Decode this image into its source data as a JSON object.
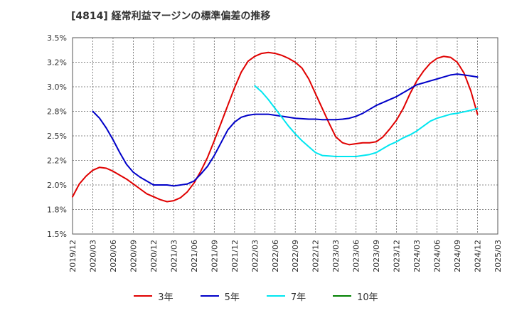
{
  "title": "[4814]  経常利益マージンの標準偏差の推移",
  "chart_data": {
    "type": "line",
    "title": "[4814]  経常利益マージンの標準偏差の推移",
    "xlabel": "",
    "ylabel": "",
    "ylim": [
      1.5,
      3.5
    ],
    "yticks": [
      "3.5%",
      "3.2%",
      "3.0%",
      "2.8%",
      "2.5%",
      "2.2%",
      "2.0%",
      "1.8%",
      "1.5%"
    ],
    "ytick_values": [
      3.5,
      3.25,
      3.0,
      2.75,
      2.5,
      2.25,
      2.0,
      1.75,
      1.5
    ],
    "xticks": [
      "2019/12",
      "2020/03",
      "2020/06",
      "2020/09",
      "2020/12",
      "2021/03",
      "2021/06",
      "2021/09",
      "2021/12",
      "2022/03",
      "2022/06",
      "2022/09",
      "2022/12",
      "2023/03",
      "2023/06",
      "2023/09",
      "2023/12",
      "2024/03",
      "2024/06",
      "2024/09",
      "2024/12",
      "2025/03"
    ],
    "grid": true,
    "legend_position": "bottom",
    "series": [
      {
        "name": "3年",
        "color": "#e00000",
        "x": [
          "2019/12",
          "2020/01",
          "2020/02",
          "2020/03",
          "2020/04",
          "2020/05",
          "2020/06",
          "2020/07",
          "2020/08",
          "2020/09",
          "2020/10",
          "2020/11",
          "2020/12",
          "2021/01",
          "2021/02",
          "2021/03",
          "2021/04",
          "2021/05",
          "2021/06",
          "2021/07",
          "2021/08",
          "2021/09",
          "2021/10",
          "2021/11",
          "2021/12",
          "2022/01",
          "2022/02",
          "2022/03",
          "2022/04",
          "2022/05",
          "2022/06",
          "2022/07",
          "2022/08",
          "2022/09",
          "2022/10",
          "2022/11",
          "2022/12",
          "2023/01",
          "2023/02",
          "2023/03",
          "2023/04",
          "2023/05",
          "2023/06",
          "2023/07",
          "2023/08",
          "2023/09",
          "2023/10",
          "2023/11",
          "2023/12",
          "2024/01",
          "2024/02",
          "2024/03",
          "2024/04",
          "2024/05",
          "2024/06",
          "2024/07",
          "2024/08",
          "2024/09",
          "2024/10",
          "2024/11",
          "2024/12"
        ],
        "values": [
          1.88,
          2.01,
          2.09,
          2.15,
          2.18,
          2.17,
          2.14,
          2.1,
          2.06,
          2.01,
          1.96,
          1.91,
          1.88,
          1.85,
          1.83,
          1.84,
          1.87,
          1.93,
          2.02,
          2.14,
          2.28,
          2.45,
          2.63,
          2.81,
          2.99,
          3.15,
          3.26,
          3.31,
          3.34,
          3.35,
          3.34,
          3.32,
          3.29,
          3.25,
          3.19,
          3.08,
          2.93,
          2.78,
          2.63,
          2.49,
          2.43,
          2.41,
          2.42,
          2.43,
          2.43,
          2.44,
          2.49,
          2.57,
          2.66,
          2.78,
          2.93,
          3.06,
          3.16,
          3.24,
          3.29,
          3.31,
          3.3,
          3.25,
          3.14,
          2.96,
          2.72
        ]
      },
      {
        "name": "5年",
        "color": "#0000c8",
        "x": [
          "2020/03",
          "2020/04",
          "2020/05",
          "2020/06",
          "2020/07",
          "2020/08",
          "2020/09",
          "2020/10",
          "2020/11",
          "2020/12",
          "2021/01",
          "2021/02",
          "2021/03",
          "2021/04",
          "2021/05",
          "2021/06",
          "2021/07",
          "2021/08",
          "2021/09",
          "2021/10",
          "2021/11",
          "2021/12",
          "2022/01",
          "2022/02",
          "2022/03",
          "2022/04",
          "2022/05",
          "2022/06",
          "2022/07",
          "2022/08",
          "2022/09",
          "2022/10",
          "2022/11",
          "2022/12",
          "2023/01",
          "2023/02",
          "2023/03",
          "2023/04",
          "2023/05",
          "2023/06",
          "2023/07",
          "2023/08",
          "2023/09",
          "2023/10",
          "2023/11",
          "2023/12",
          "2024/01",
          "2024/02",
          "2024/03",
          "2024/04",
          "2024/05",
          "2024/06",
          "2024/07",
          "2024/08",
          "2024/09",
          "2024/10",
          "2024/11",
          "2024/12"
        ],
        "values": [
          2.75,
          2.68,
          2.58,
          2.46,
          2.33,
          2.21,
          2.13,
          2.08,
          2.04,
          2.0,
          2.0,
          2.0,
          1.99,
          2.0,
          2.01,
          2.04,
          2.11,
          2.19,
          2.3,
          2.43,
          2.56,
          2.64,
          2.69,
          2.71,
          2.72,
          2.72,
          2.72,
          2.71,
          2.7,
          2.69,
          2.68,
          2.675,
          2.67,
          2.67,
          2.665,
          2.665,
          2.665,
          2.67,
          2.68,
          2.7,
          2.73,
          2.77,
          2.81,
          2.84,
          2.87,
          2.9,
          2.94,
          2.98,
          3.02,
          3.04,
          3.06,
          3.08,
          3.1,
          3.12,
          3.13,
          3.12,
          3.11,
          3.1
        ]
      },
      {
        "name": "7年",
        "color": "#00e6f0",
        "x": [
          "2022/03",
          "2022/04",
          "2022/05",
          "2022/06",
          "2022/07",
          "2022/08",
          "2022/09",
          "2022/10",
          "2022/11",
          "2022/12",
          "2023/01",
          "2023/02",
          "2023/03",
          "2023/04",
          "2023/05",
          "2023/06",
          "2023/07",
          "2023/08",
          "2023/09",
          "2023/10",
          "2023/11",
          "2023/12",
          "2024/01",
          "2024/02",
          "2024/03",
          "2024/04",
          "2024/05",
          "2024/06",
          "2024/07",
          "2024/08",
          "2024/09",
          "2024/10",
          "2024/11",
          "2024/12"
        ],
        "values": [
          3.01,
          2.95,
          2.87,
          2.78,
          2.69,
          2.6,
          2.52,
          2.45,
          2.39,
          2.33,
          2.3,
          2.295,
          2.29,
          2.29,
          2.29,
          2.29,
          2.3,
          2.31,
          2.33,
          2.37,
          2.41,
          2.44,
          2.48,
          2.51,
          2.55,
          2.6,
          2.65,
          2.68,
          2.7,
          2.72,
          2.73,
          2.745,
          2.76,
          2.78
        ]
      },
      {
        "name": "10年",
        "color": "#008000",
        "x": [],
        "values": []
      }
    ]
  }
}
